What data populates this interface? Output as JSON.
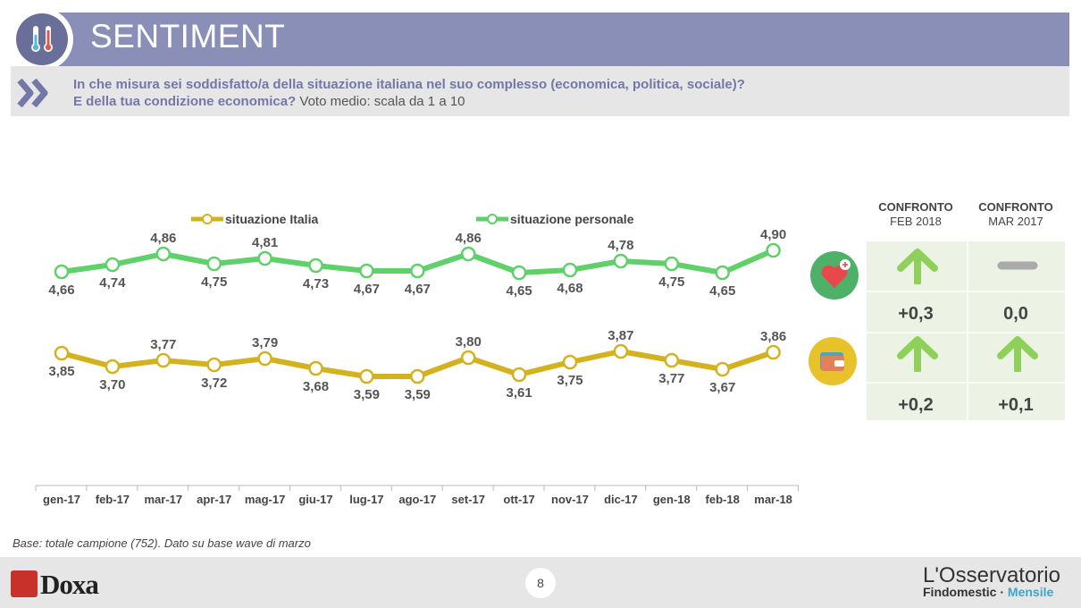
{
  "header": {
    "title": "SENTIMENT",
    "question_line1": "In che misura sei soddisfatto/a della situazione italiana nel suo complesso (economica, politica, sociale)?",
    "question_line2_bold": "E della tua condizione economica?",
    "question_line2_rest": " Voto medio: scala da 1 a 10"
  },
  "colors": {
    "header": "#8a8fb8",
    "italia": "#d4b21f",
    "personale": "#5fd06a",
    "arrow": "#8fd05a",
    "dash": "#aaaaaa"
  },
  "chart_data": {
    "type": "line",
    "categories": [
      "gen-17",
      "feb-17",
      "mar-17",
      "apr-17",
      "mag-17",
      "giu-17",
      "lug-17",
      "ago-17",
      "set-17",
      "ott-17",
      "nov-17",
      "dic-17",
      "gen-18",
      "feb-18",
      "mar-18"
    ],
    "series": [
      {
        "name": "situazione personale",
        "values": [
          4.66,
          4.74,
          4.86,
          4.75,
          4.81,
          4.73,
          4.67,
          4.67,
          4.86,
          4.65,
          4.68,
          4.78,
          4.75,
          4.65,
          4.9
        ],
        "labels": [
          "4,66",
          "4,74",
          "4,86",
          "4,75",
          "4,81",
          "4,73",
          "4,67",
          "4,67",
          "4,86",
          "4,65",
          "4,68",
          "4,78",
          "4,75",
          "4,65",
          "4,90"
        ]
      },
      {
        "name": "situazione Italia",
        "values": [
          3.85,
          3.7,
          3.77,
          3.72,
          3.79,
          3.68,
          3.59,
          3.59,
          3.8,
          3.61,
          3.75,
          3.87,
          3.77,
          3.67,
          3.86
        ],
        "labels": [
          "3,85",
          "3,70",
          "3,77",
          "3,72",
          "3,79",
          "3,68",
          "3,59",
          "3,59",
          "3,80",
          "3,61",
          "3,75",
          "3,87",
          "3,77",
          "3,67",
          "3,86"
        ]
      }
    ],
    "legend": [
      "situazione Italia",
      "situazione personale"
    ],
    "grid": false
  },
  "comparison": {
    "col1_title": "CONFRONTO",
    "col1_sub": "FEB 2018",
    "col2_title": "CONFRONTO",
    "col2_sub": "MAR 2017",
    "personale": {
      "col1": "+0,3",
      "col1_icon": "arrow-up-icon",
      "col2": "0,0",
      "col2_icon": "dash-icon"
    },
    "italia": {
      "col1": "+0,2",
      "col1_icon": "arrow-up-icon",
      "col2": "+0,1",
      "col2_icon": "arrow-up-icon"
    }
  },
  "footer": {
    "base_note": "Base: totale campione (752). Dato su base wave di marzo",
    "page_number": "8",
    "logo_left": "Doxa",
    "logo_right_line1": "L'Osservatorio",
    "logo_right_line2a": "Findomestic · ",
    "logo_right_line2b": "Mensile"
  }
}
